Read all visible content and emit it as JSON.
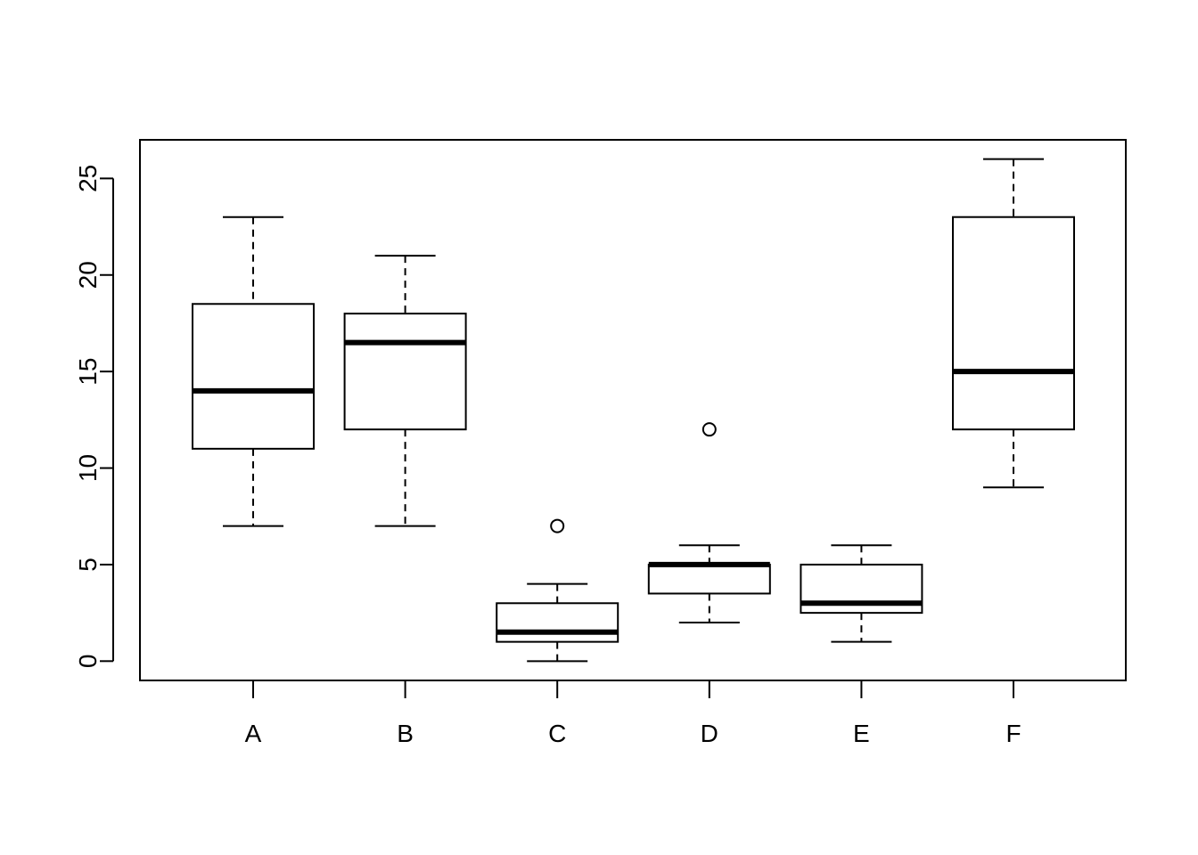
{
  "chart_data": {
    "type": "boxplot",
    "title": "",
    "xlabel": "",
    "ylabel": "",
    "ylim": [
      -1,
      27
    ],
    "yticks": [
      0,
      5,
      10,
      15,
      20,
      25
    ],
    "grid": false,
    "categories": [
      "A",
      "B",
      "C",
      "D",
      "E",
      "F"
    ],
    "boxes": [
      {
        "name": "A",
        "min": 7,
        "q1": 11,
        "median": 14,
        "q3": 18.5,
        "max": 23,
        "outliers": []
      },
      {
        "name": "B",
        "min": 7,
        "q1": 12,
        "median": 16.5,
        "q3": 18,
        "max": 21,
        "outliers": []
      },
      {
        "name": "C",
        "min": 0,
        "q1": 1,
        "median": 1.5,
        "q3": 3,
        "max": 4,
        "outliers": [
          7
        ]
      },
      {
        "name": "D",
        "min": 2,
        "q1": 3.5,
        "median": 5,
        "q3": 5,
        "max": 6,
        "outliers": [
          12
        ]
      },
      {
        "name": "E",
        "min": 1,
        "q1": 2.5,
        "median": 3,
        "q3": 5,
        "max": 6,
        "outliers": []
      },
      {
        "name": "F",
        "min": 9,
        "q1": 12,
        "median": 15,
        "q3": 23,
        "max": 26,
        "outliers": []
      }
    ]
  }
}
